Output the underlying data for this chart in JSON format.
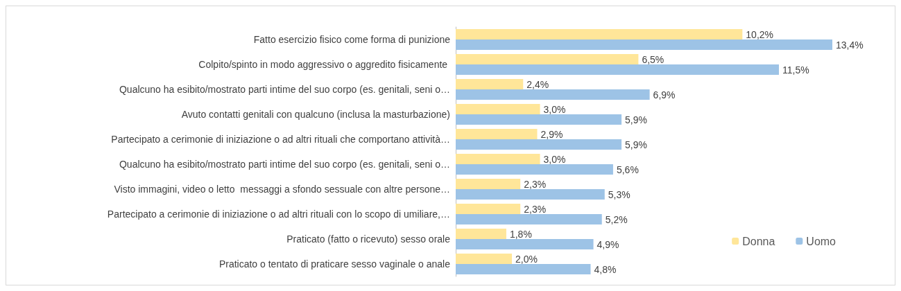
{
  "chart_data": {
    "type": "bar",
    "orientation": "horizontal",
    "categories": [
      "Fatto esercizio fisico come forma di punizione",
      "Colpito/spinto in modo aggressivo o aggredito fisicamente ",
      "Qualcuno ha esibito/mostrato parti intime del suo corpo (es. genitali, seni o…",
      "Avuto contatti genitali con qualcuno (inclusa la masturbazione)",
      "Partecipato a cerimonie di iniziazione o ad altri rituali che comportano attività…",
      "Qualcuno ha esibito/mostrato parti intime del suo corpo (es. genitali, seni o…",
      "Visto immagini, video o letto  messaggi a sfondo sessuale con altre persone…",
      "Partecipato a cerimonie di iniziazione o ad altri rituali con lo scopo di umiliare,…",
      "Praticato (fatto o ricevuto) sesso orale",
      "Praticato o tentato di praticare sesso vaginale o anale"
    ],
    "series": [
      {
        "name": "Donna",
        "color": "#ffe699",
        "values": [
          10.2,
          6.5,
          2.4,
          3.0,
          2.9,
          3.0,
          2.3,
          2.3,
          1.8,
          2.0
        ],
        "value_labels": [
          "10,2%",
          "6,5%",
          "2,4%",
          "3,0%",
          "2,9%",
          "3,0%",
          "2,3%",
          "2,3%",
          "1,8%",
          "2,0%"
        ]
      },
      {
        "name": "Uomo",
        "color": "#9dc3e6",
        "values": [
          13.4,
          11.5,
          6.9,
          5.9,
          5.9,
          5.6,
          5.3,
          5.2,
          4.9,
          4.8
        ],
        "value_labels": [
          "13,4%",
          "11,5%",
          "6,9%",
          "5,9%",
          "5,9%",
          "5,6%",
          "5,3%",
          "5,2%",
          "4,9%",
          "4,8%"
        ]
      }
    ],
    "legend": "bottom right"
  }
}
